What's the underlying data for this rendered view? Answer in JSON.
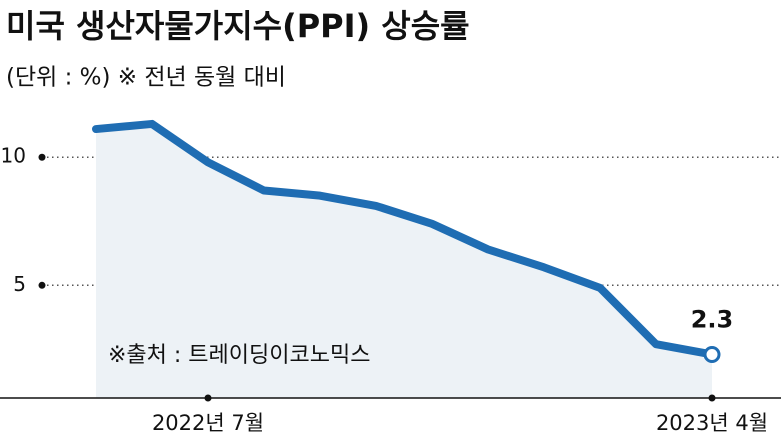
{
  "chart_data": {
    "type": "line",
    "title": "미국 생산자물가지수(PPI) 상승률",
    "subtitle": "(단위 : %)  ※ 전년 동월 대비",
    "source": "※출처 : 트레이딩이코노믹스",
    "categories": [
      null,
      null,
      "2022년 7월",
      null,
      null,
      null,
      null,
      null,
      null,
      null,
      null,
      "2023년 4월"
    ],
    "series": [
      {
        "name": "PPI",
        "color": "#1f6db3",
        "values": [
          11.1,
          11.3,
          9.8,
          8.7,
          8.5,
          8.1,
          7.4,
          6.4,
          5.7,
          4.9,
          2.7,
          2.3
        ],
        "value_labels": [
          null,
          null,
          null,
          null,
          null,
          null,
          null,
          null,
          null,
          null,
          null,
          "2.3"
        ]
      }
    ],
    "ylim": [
      0.6,
      12
    ],
    "yticks": [
      5,
      10
    ],
    "grid": true
  }
}
